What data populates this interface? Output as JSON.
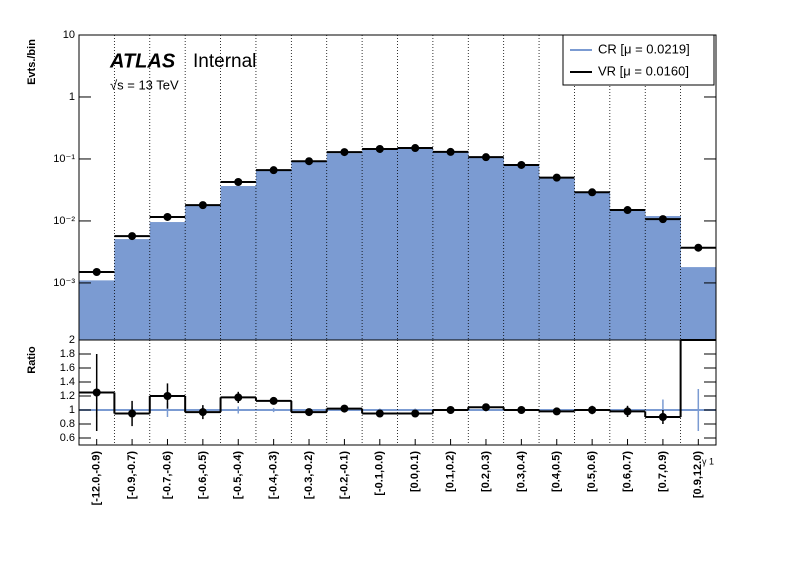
{
  "chart_data": [
    {
      "type": "bar",
      "log_y": true,
      "ylabel": "Evts./bin",
      "annotations": [
        "ATLAS",
        "Internal",
        "√s = 13 TeV"
      ],
      "ylim": [
        0.00012,
        10
      ],
      "yticks": [
        {
          "value": 0.001,
          "label": "10⁻³"
        },
        {
          "value": 0.01,
          "label": "10⁻²"
        },
        {
          "value": 0.1,
          "label": "10⁻¹"
        },
        1,
        10
      ],
      "legend": "upper right",
      "series": [
        {
          "name": "CR [μ = 0.0219]",
          "color": "#7b9bd2",
          "style": "fill",
          "values": [
            0.0011,
            0.0051,
            0.0096,
            0.018,
            0.0366,
            0.064,
            0.092,
            0.124,
            0.145,
            0.15,
            0.134,
            0.107,
            0.08,
            0.049,
            0.029,
            0.015,
            0.012,
            0.0018
          ]
        },
        {
          "name": "VR [μ = 0.0160]",
          "color": "#000000",
          "style": "step-points",
          "values": [
            0.0015,
            0.0057,
            0.0116,
            0.018,
            0.0425,
            0.066,
            0.092,
            0.129,
            0.145,
            0.15,
            0.13,
            0.107,
            0.08,
            0.05,
            0.029,
            0.015,
            0.0107,
            0.0037
          ]
        }
      ]
    },
    {
      "type": "step",
      "ylabel": "Ratio",
      "xlabel": "γ 1",
      "categories": [
        "[-12.0,-0.9)",
        "[-0.9,-0.7)",
        "[-0.7,-0.6)",
        "[-0.6,-0.5)",
        "[-0.5,-0.4)",
        "[-0.4,-0.3)",
        "[-0.3,-0.2)",
        "[-0.2,-0.1)",
        "[-0.1,0.0)",
        "[0.0,0.1)",
        "[0.1,0.2)",
        "[0.2,0.3)",
        "[0.3,0.4)",
        "[0.4,0.5)",
        "[0.5,0.6)",
        "[0.6,0.7)",
        "[0.7,0.9)",
        "[0.9,12.0)"
      ],
      "ylim": [
        0.5,
        2
      ],
      "yticks": [
        0.6,
        0.8,
        1,
        1.2,
        1.4,
        1.6,
        1.8,
        2
      ],
      "series": [
        {
          "color": "#7b9bd2",
          "style": "reference",
          "values": [
            1,
            1,
            1,
            1,
            1,
            1,
            1,
            1,
            1,
            1,
            1,
            1,
            1,
            1,
            1,
            1,
            1,
            1
          ],
          "errors": [
            0.1,
            0.05,
            0.1,
            0.05,
            0.05,
            0.03,
            0.02,
            0.02,
            0.02,
            0.02,
            0.02,
            0.02,
            0.02,
            0.03,
            0.04,
            0.05,
            0.15,
            0.3
          ]
        },
        {
          "color": "#000000",
          "style": "step-points",
          "values": [
            1.25,
            0.95,
            1.2,
            0.97,
            1.18,
            1.13,
            0.97,
            1.02,
            0.95,
            0.95,
            1.0,
            1.04,
            1.0,
            0.98,
            1.0,
            0.98,
            0.9,
            2
          ],
          "errors": [
            0.55,
            0.18,
            0.18,
            0.1,
            0.08,
            0.05,
            0.03,
            0.02,
            0.02,
            0.02,
            0.02,
            0.03,
            0.03,
            0.04,
            0.06,
            0.08,
            0.1,
            0
          ]
        }
      ]
    }
  ]
}
